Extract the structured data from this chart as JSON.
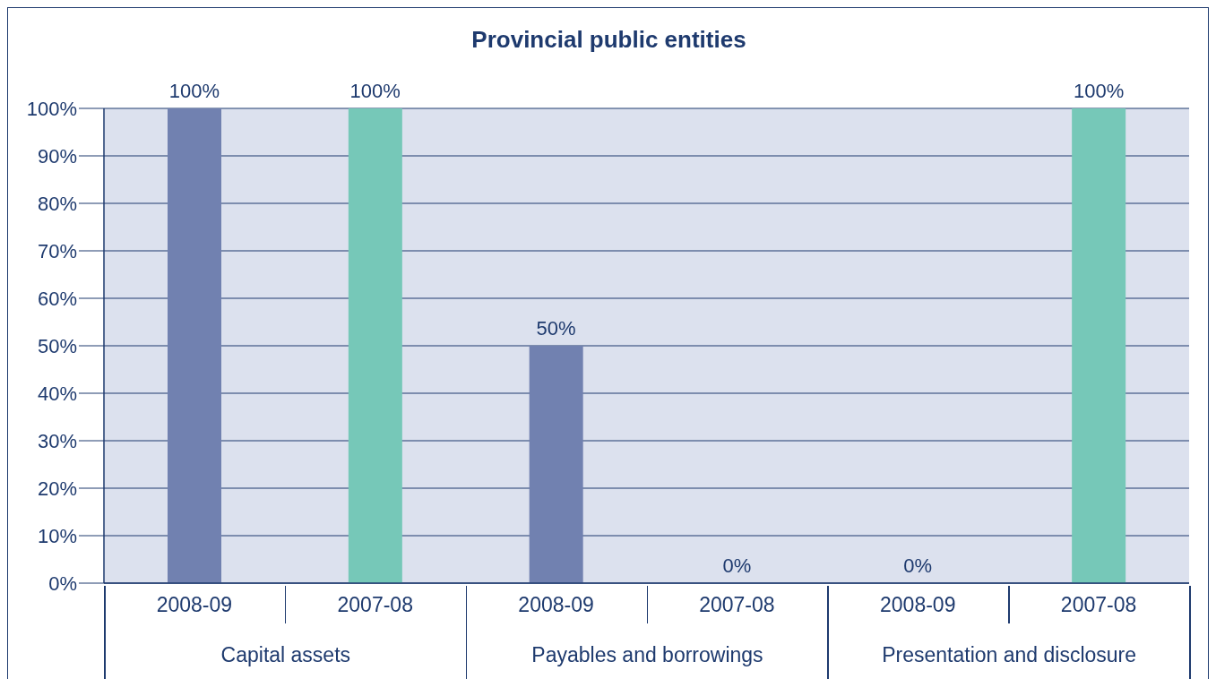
{
  "chart_data": {
    "type": "bar",
    "title": "Provincial public entities",
    "categories": [
      "2008-09",
      "2007-08",
      "2008-09",
      "2007-08",
      "2008-09",
      "2007-08"
    ],
    "values": [
      100,
      100,
      50,
      0,
      0,
      100
    ],
    "colors": [
      "#7181b0",
      "#76c8b8",
      "#7181b0",
      "#76c8b8",
      "#7181b0",
      "#76c8b8"
    ],
    "value_labels": [
      "100%",
      "100%",
      "50%",
      "0%",
      "0%",
      "100%"
    ],
    "ylim": [
      0,
      100
    ],
    "yticks": [
      {
        "value": 0,
        "label": "0%"
      },
      {
        "value": 10,
        "label": "10%"
      },
      {
        "value": 20,
        "label": "20%"
      },
      {
        "value": 30,
        "label": "30%"
      },
      {
        "value": 40,
        "label": "40%"
      },
      {
        "value": 50,
        "label": "50%"
      },
      {
        "value": 60,
        "label": "60%"
      },
      {
        "value": 70,
        "label": "70%"
      },
      {
        "value": 80,
        "label": "80%"
      },
      {
        "value": 90,
        "label": "90%"
      },
      {
        "value": 100,
        "label": "100%"
      }
    ],
    "grid": "y",
    "annotations": [
      "Capital assets",
      "Payables and borrowings",
      "Presentation and disclosure"
    ]
  }
}
